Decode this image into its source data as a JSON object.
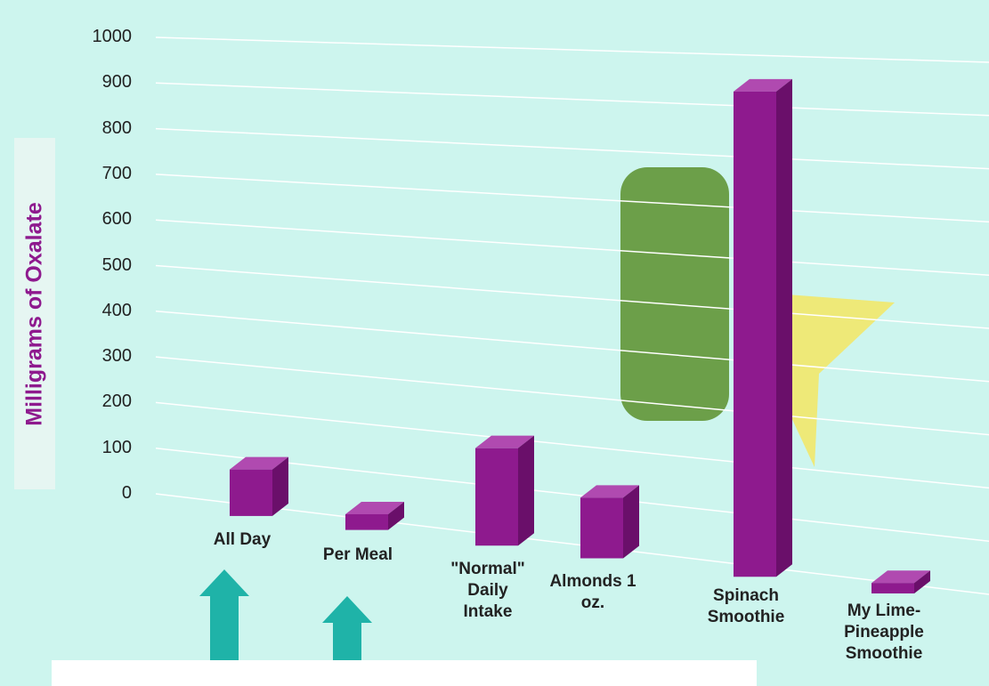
{
  "chart_data": {
    "type": "bar3d",
    "y_label": "Milligrams of Oxalate",
    "categories": [
      "All Day",
      "Per Meal",
      "\"Normal\" Daily Intake",
      "Almonds 1 oz.",
      "Spinach Smoothie",
      "My Lime-Pineapple Smoothie"
    ],
    "values": [
      100,
      33,
      200,
      122,
      950,
      20
    ],
    "color": "#8e1a8e",
    "ylim": [
      0,
      1000
    ],
    "yticks": [
      0,
      100,
      200,
      300,
      400,
      500,
      600,
      700,
      800,
      900,
      1000
    ],
    "grid": true
  }
}
